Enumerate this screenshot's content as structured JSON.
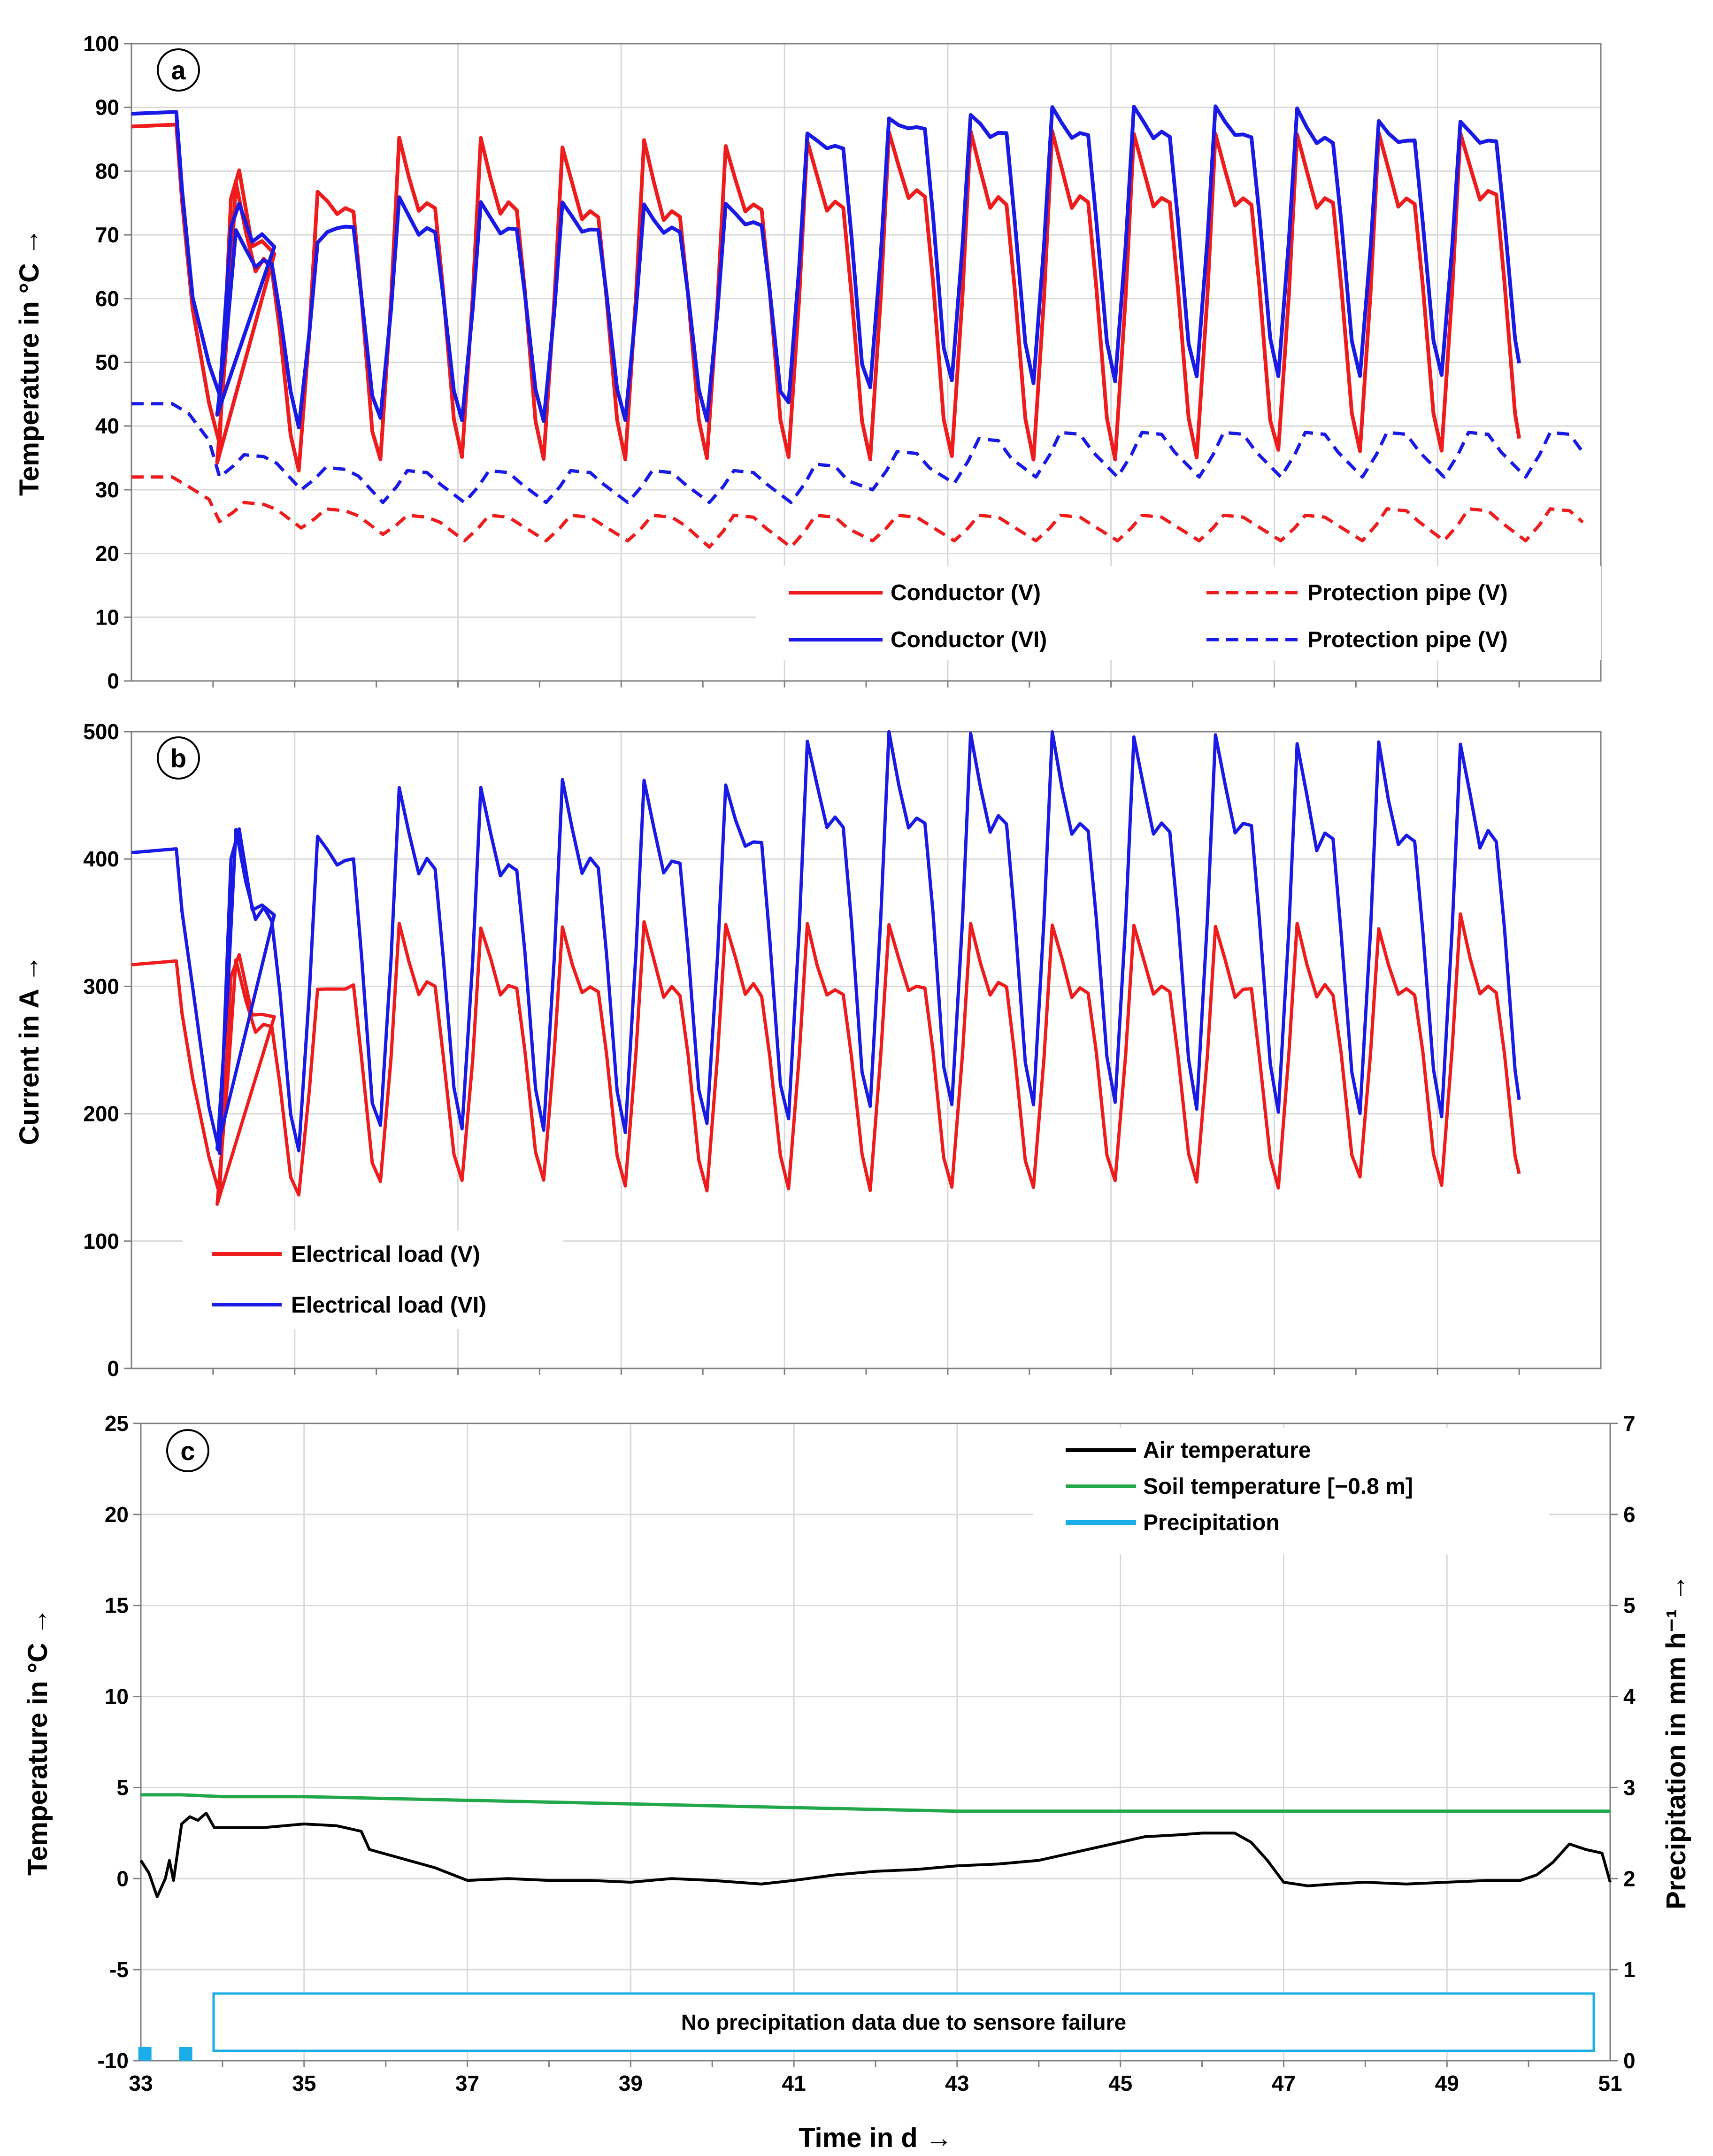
{
  "x_axis": {
    "label": "Time in d →",
    "range": [
      33,
      51
    ],
    "ticks": [
      "33",
      "35",
      "37",
      "39",
      "41",
      "43",
      "45",
      "47",
      "49",
      "51"
    ]
  },
  "chart_data": [
    {
      "panel": "a",
      "type": "line",
      "ylabel": "Temperature in °C →",
      "ylim": [
        0,
        100
      ],
      "yticks": [
        "0",
        "10",
        "20",
        "30",
        "40",
        "50",
        "60",
        "70",
        "80",
        "90",
        "100"
      ],
      "legend_position": "bottom-right",
      "series": [
        {
          "name": "Conductor (V)",
          "color": "#ee1c1c",
          "dash": "solid",
          "start": 87,
          "min": [
            37,
            34,
            33,
            35,
            35,
            35,
            35,
            35,
            35,
            35,
            35,
            35,
            35,
            35,
            36,
            36,
            36
          ],
          "max": [
            80,
            78,
            77,
            85,
            85,
            84,
            85,
            84,
            85,
            86,
            86,
            86,
            86,
            86,
            86,
            86,
            86
          ],
          "second": [
            68,
            66,
            74,
            75,
            75,
            74,
            74,
            75,
            75,
            77,
            76,
            76,
            76,
            76,
            76,
            76,
            77
          ]
        },
        {
          "name": "Conductor (VI)",
          "color": "#1a1ae6",
          "dash": "solid",
          "start": 89,
          "min": [
            45,
            42,
            40,
            41,
            41,
            41,
            41,
            41,
            44,
            46,
            47,
            47,
            47,
            48,
            48,
            48,
            48
          ],
          "max": [
            75,
            71,
            69,
            76,
            75,
            75,
            75,
            75,
            86,
            88,
            89,
            90,
            90,
            90,
            90,
            88,
            88
          ],
          "second": [
            69,
            66,
            71,
            71,
            71,
            71,
            71,
            72,
            84,
            87,
            86,
            86,
            86,
            86,
            85,
            85,
            85
          ]
        },
        {
          "name": "Protection pipe (V)",
          "color": "#ee1c1c",
          "dash": "dashed",
          "start": 32,
          "low": [
            25,
            24,
            23,
            22,
            22,
            22,
            21,
            21,
            22,
            22,
            22,
            22,
            22,
            22,
            22,
            22,
            22
          ],
          "high": [
            28,
            27,
            26,
            26,
            26,
            26,
            26,
            26,
            26,
            26,
            26,
            26,
            26,
            26,
            27,
            27,
            27
          ]
        },
        {
          "name": "Protection pipe (V)",
          "color": "#1a1ae6",
          "dash": "dashed",
          "start": 43.5,
          "low": [
            32,
            30,
            28,
            28,
            28,
            28,
            28,
            28,
            30,
            31,
            32,
            32,
            32,
            32,
            32,
            32,
            32
          ],
          "high": [
            35.5,
            33.5,
            33,
            33,
            33,
            33,
            33,
            34,
            36,
            38,
            39,
            39,
            39,
            39,
            39,
            39,
            39
          ]
        }
      ]
    },
    {
      "panel": "b",
      "type": "line",
      "ylabel": "Current in A →",
      "ylim": [
        0,
        500
      ],
      "yticks": [
        "0",
        "100",
        "200",
        "300",
        "400",
        "500"
      ],
      "legend_position": "bottom-left",
      "series": [
        {
          "name": "Electrical load (V)",
          "color": "#ee1c1c",
          "start": 317,
          "min": [
            135,
            130,
            135,
            145,
            145,
            145,
            142,
            142,
            142,
            142,
            142,
            145,
            145,
            145,
            142,
            148,
            145
          ],
          "max": [
            322,
            322,
            300,
            348,
            345,
            348,
            348,
            350,
            348,
            350,
            350,
            350,
            350,
            348,
            350,
            348,
            355
          ],
          "second": [
            275,
            272,
            300,
            302,
            302,
            300,
            300,
            300,
            300,
            302,
            302,
            300,
            300,
            300,
            300,
            300,
            303
          ]
        },
        {
          "name": "Electrical load (VI)",
          "color": "#1a1ae6",
          "start": 405,
          "min": [
            170,
            172,
            172,
            190,
            188,
            185,
            188,
            190,
            195,
            205,
            208,
            210,
            210,
            205,
            200,
            200,
            200
          ],
          "max": [
            423,
            423,
            420,
            458,
            456,
            460,
            460,
            460,
            495,
            500,
            498,
            498,
            495,
            495,
            490,
            490,
            490
          ],
          "second": [
            360,
            360,
            400,
            398,
            398,
            400,
            400,
            415,
            432,
            435,
            432,
            430,
            430,
            430,
            420,
            420,
            420
          ]
        }
      ]
    },
    {
      "panel": "c",
      "type": "line",
      "ylabel": "Temperature in °C →",
      "ylabel_right": "Precipitation in mm h⁻¹ →",
      "ylim": [
        -10,
        25
      ],
      "ylim_right": [
        0,
        7
      ],
      "yticks": [
        "-10",
        "-5",
        "0",
        "5",
        "10",
        "15",
        "20",
        "25"
      ],
      "yticks_right": [
        "0",
        "1",
        "2",
        "3",
        "4",
        "5",
        "6",
        "7"
      ],
      "legend_position": "top-right",
      "series": [
        {
          "name": "Air temperature",
          "color": "#000000",
          "points": [
            [
              33.0,
              1.0
            ],
            [
              33.1,
              0.3
            ],
            [
              33.2,
              -1.0
            ],
            [
              33.3,
              0.0
            ],
            [
              33.35,
              1.0
            ],
            [
              33.4,
              -0.1
            ],
            [
              33.5,
              3.0
            ],
            [
              33.6,
              3.4
            ],
            [
              33.7,
              3.2
            ],
            [
              33.8,
              3.6
            ],
            [
              33.9,
              2.8
            ],
            [
              34.5,
              2.8
            ],
            [
              35.0,
              3.0
            ],
            [
              35.4,
              2.9
            ],
            [
              35.7,
              2.6
            ],
            [
              35.8,
              1.6
            ],
            [
              36.2,
              1.1
            ],
            [
              36.6,
              0.6
            ],
            [
              37.0,
              -0.1
            ],
            [
              37.5,
              0.0
            ],
            [
              38.0,
              -0.1
            ],
            [
              38.5,
              -0.1
            ],
            [
              39.0,
              -0.2
            ],
            [
              39.5,
              0.0
            ],
            [
              40.0,
              -0.1
            ],
            [
              40.3,
              -0.2
            ],
            [
              40.6,
              -0.3
            ],
            [
              41.0,
              -0.1
            ],
            [
              41.5,
              0.2
            ],
            [
              42.0,
              0.4
            ],
            [
              42.5,
              0.5
            ],
            [
              43.0,
              0.7
            ],
            [
              43.5,
              0.8
            ],
            [
              44.0,
              1.0
            ],
            [
              44.5,
              1.5
            ],
            [
              45.0,
              2.0
            ],
            [
              45.3,
              2.3
            ],
            [
              45.7,
              2.4
            ],
            [
              46.0,
              2.5
            ],
            [
              46.4,
              2.5
            ],
            [
              46.6,
              2.0
            ],
            [
              46.8,
              1.0
            ],
            [
              47.0,
              -0.2
            ],
            [
              47.3,
              -0.4
            ],
            [
              47.6,
              -0.3
            ],
            [
              48.0,
              -0.2
            ],
            [
              48.5,
              -0.3
            ],
            [
              49.0,
              -0.2
            ],
            [
              49.5,
              -0.1
            ],
            [
              49.9,
              -0.1
            ],
            [
              50.1,
              0.2
            ],
            [
              50.3,
              0.9
            ],
            [
              50.5,
              1.9
            ],
            [
              50.7,
              1.6
            ],
            [
              50.9,
              1.4
            ],
            [
              51.0,
              -0.2
            ]
          ]
        },
        {
          "name": "Soil temperature [−0.8 m]",
          "color": "#22a84a",
          "points": [
            [
              33.0,
              4.6
            ],
            [
              33.5,
              4.6
            ],
            [
              34.0,
              4.5
            ],
            [
              35.0,
              4.5
            ],
            [
              36.0,
              4.4
            ],
            [
              37.0,
              4.3
            ],
            [
              38.0,
              4.2
            ],
            [
              39.0,
              4.1
            ],
            [
              40.0,
              4.0
            ],
            [
              41.0,
              3.9
            ],
            [
              42.0,
              3.8
            ],
            [
              43.0,
              3.7
            ],
            [
              45.0,
              3.7
            ],
            [
              47.0,
              3.7
            ],
            [
              49.0,
              3.7
            ],
            [
              51.0,
              3.7
            ]
          ]
        },
        {
          "name": "Precipitation",
          "color": "#1aaee8",
          "bars": [
            [
              33.05,
              0.15
            ],
            [
              33.55,
              0.15
            ]
          ]
        }
      ],
      "annotation": "No precipitation data due to sensore failure"
    }
  ]
}
